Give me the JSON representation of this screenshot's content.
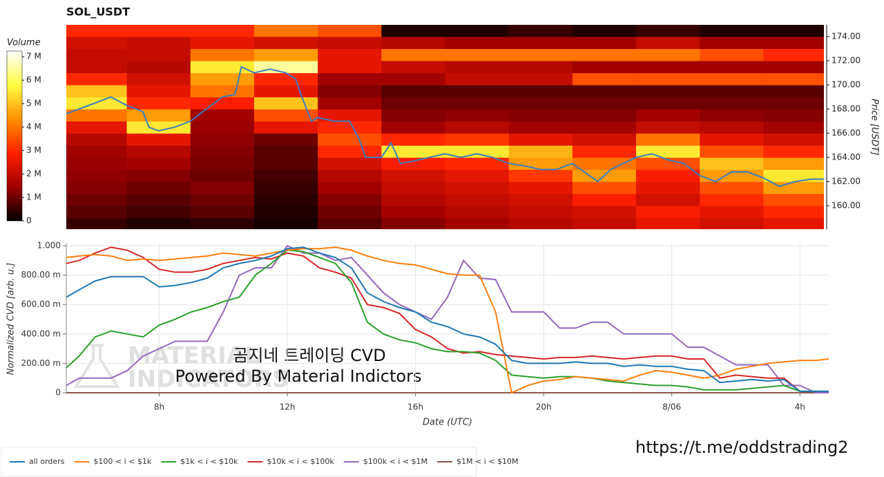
{
  "chart_data": [
    {
      "type": "heatmap",
      "title": "SOL_USDT",
      "x_edges": [
        5,
        7,
        9,
        11,
        13,
        15,
        17,
        19,
        21,
        23,
        25,
        27,
        29
      ],
      "y_edges": [
        158,
        159,
        160,
        161,
        162,
        163,
        164,
        165,
        166,
        167,
        168,
        169,
        170,
        171,
        172,
        173,
        174,
        175
      ],
      "values": [
        [
          0.5,
          0.3,
          0.4,
          0.2,
          0.8,
          1.2,
          1.5,
          1.8,
          2.0,
          2.5,
          2.2,
          2.5
        ],
        [
          0.8,
          0.6,
          0.8,
          0.3,
          1.0,
          1.5,
          1.8,
          2.0,
          2.2,
          2.8,
          2.5,
          3.0
        ],
        [
          1.0,
          0.8,
          1.0,
          0.4,
          1.2,
          1.8,
          2.0,
          2.2,
          2.8,
          2.2,
          3.0,
          3.5
        ],
        [
          1.2,
          1.0,
          1.2,
          0.5,
          1.5,
          2.0,
          2.2,
          2.5,
          3.5,
          2.5,
          3.5,
          4.5
        ],
        [
          1.3,
          1.2,
          1.0,
          0.6,
          1.8,
          2.2,
          2.5,
          3.2,
          4.5,
          2.8,
          4.5,
          5.5
        ],
        [
          1.4,
          1.5,
          1.1,
          0.8,
          2.2,
          2.8,
          3.0,
          4.5,
          4.0,
          3.5,
          5.0,
          4.5
        ],
        [
          1.5,
          1.8,
          1.2,
          0.8,
          3.0,
          5.5,
          5.5,
          4.8,
          3.0,
          5.5,
          3.5,
          3.0
        ],
        [
          1.8,
          2.5,
          1.3,
          1.0,
          3.5,
          3.0,
          3.2,
          2.5,
          2.2,
          4.0,
          2.5,
          2.2
        ],
        [
          2.5,
          5.5,
          1.4,
          2.5,
          3.0,
          1.5,
          1.8,
          1.5,
          1.5,
          2.0,
          1.8,
          1.5
        ],
        [
          4.0,
          4.5,
          1.5,
          3.5,
          2.5,
          1.2,
          1.3,
          1.2,
          1.2,
          1.5,
          1.3,
          1.2
        ],
        [
          5.5,
          3.0,
          2.8,
          5.0,
          1.5,
          1.0,
          1.0,
          1.0,
          1.0,
          1.0,
          1.0,
          1.0
        ],
        [
          5.0,
          2.5,
          4.0,
          2.5,
          1.2,
          0.8,
          0.8,
          0.8,
          0.8,
          0.8,
          0.8,
          0.8
        ],
        [
          3.0,
          2.2,
          4.5,
          3.0,
          1.5,
          1.5,
          2.0,
          2.0,
          3.5,
          3.5,
          3.5,
          3.5
        ],
        [
          2.0,
          1.8,
          5.5,
          6.5,
          2.5,
          2.0,
          1.8,
          1.8,
          1.5,
          1.5,
          1.5,
          1.5
        ],
        [
          2.0,
          2.0,
          4.0,
          4.5,
          2.5,
          4.0,
          4.0,
          4.0,
          4.0,
          4.0,
          3.5,
          3.0
        ],
        [
          2.2,
          2.0,
          2.5,
          2.2,
          2.0,
          1.8,
          1.5,
          1.5,
          1.5,
          2.0,
          1.5,
          1.5
        ],
        [
          3.0,
          3.0,
          3.0,
          4.0,
          3.5,
          0.3,
          0.3,
          0.5,
          0.3,
          0.5,
          0.3,
          0.3
        ]
      ],
      "colormap": [
        "#000000",
        "#a00000",
        "#ff2000",
        "#ff9000",
        "#ffff40",
        "#ffffff"
      ],
      "clim": [
        0,
        7.24
      ],
      "colorbar_label": "Volume",
      "cticks": [
        0,
        {
          "value": 1,
          "label": "1 M"
        },
        {
          "value": 2,
          "label": "2 M"
        },
        {
          "value": 3,
          "label": "3 M"
        },
        {
          "value": 4,
          "label": "4 M"
        },
        {
          "value": 5,
          "label": "5 M"
        },
        {
          "value": 6,
          "label": "6 M"
        },
        {
          "value": 7,
          "label": "7 M"
        }
      ],
      "price": {
        "color": "#3a7dbf",
        "x": [
          5.1,
          5.5,
          6,
          6.5,
          7,
          7.5,
          7.7,
          8,
          8.5,
          9,
          9.5,
          10,
          10.4,
          10.6,
          11,
          11.5,
          12,
          12.3,
          12.5,
          12.8,
          13,
          13.5,
          14,
          14.3,
          14.5,
          15,
          15.3,
          15.6,
          16,
          16.5,
          17,
          17.5,
          18,
          18.5,
          19,
          19.5,
          20,
          20.5,
          21,
          21.8,
          22.2,
          23,
          23.5,
          24,
          24.5,
          25,
          25.5,
          26,
          26.5,
          27,
          27.5,
          28,
          28.5,
          28.9
        ],
        "values": [
          167.6,
          168.0,
          168.5,
          169.0,
          168.3,
          167.8,
          166.5,
          166.2,
          166.5,
          167.0,
          168.0,
          169.0,
          169.2,
          171.5,
          171.0,
          171.3,
          171.0,
          170.5,
          169.0,
          167.0,
          167.3,
          167.0,
          167.0,
          165.5,
          164.0,
          164.0,
          165.2,
          163.5,
          163.7,
          164.0,
          164.3,
          164.0,
          164.3,
          164.0,
          163.5,
          163.3,
          163.0,
          163.0,
          163.5,
          162.0,
          163.0,
          164.0,
          164.3,
          163.8,
          163.5,
          162.5,
          162.0,
          162.8,
          162.8,
          162.3,
          161.6,
          162.0,
          162.2,
          162.2
        ]
      },
      "xlim": [
        5.1,
        28.9
      ],
      "ylim": [
        158.06,
        174.97
      ],
      "yticks": [
        {
          "value": 160,
          "label": "160.00"
        },
        {
          "value": 162,
          "label": "162.00"
        },
        {
          "value": 164,
          "label": "164.00"
        },
        {
          "value": 166,
          "label": "166.00"
        },
        {
          "value": 168,
          "label": "168.00"
        },
        {
          "value": 170,
          "label": "170.00"
        },
        {
          "value": 172,
          "label": "172.00"
        },
        {
          "value": 174,
          "label": "174.00"
        }
      ],
      "ylabel": "Price [USDT]"
    },
    {
      "type": "line",
      "x": [
        5.1,
        5.5,
        6,
        6.5,
        7,
        7.5,
        8,
        8.5,
        9,
        9.5,
        10,
        10.5,
        11,
        11.5,
        12,
        12.5,
        13,
        13.5,
        14,
        14.5,
        15,
        15.5,
        16,
        16.5,
        17,
        17.5,
        18,
        18.5,
        19,
        19.5,
        20,
        20.5,
        21,
        21.5,
        22,
        22.5,
        23,
        23.5,
        24,
        24.5,
        25,
        25.5,
        26,
        26.5,
        27,
        27.5,
        28,
        28.5,
        28.9
      ],
      "series": [
        {
          "name": "all orders",
          "color": "#1f77b4",
          "values": [
            0.65,
            0.7,
            0.76,
            0.79,
            0.79,
            0.79,
            0.72,
            0.73,
            0.75,
            0.78,
            0.85,
            0.88,
            0.9,
            0.93,
            0.98,
            0.99,
            0.95,
            0.92,
            0.85,
            0.68,
            0.62,
            0.58,
            0.55,
            0.48,
            0.45,
            0.4,
            0.38,
            0.33,
            0.22,
            0.2,
            0.2,
            0.2,
            0.21,
            0.2,
            0.2,
            0.18,
            0.19,
            0.18,
            0.18,
            0.16,
            0.15,
            0.07,
            0.08,
            0.09,
            0.08,
            0.09,
            0.01,
            0.01,
            0.01
          ]
        },
        {
          "name": "$100 < i < $1k",
          "color": "#ff7f0e",
          "values": [
            0.92,
            0.93,
            0.94,
            0.93,
            0.9,
            0.91,
            0.9,
            0.91,
            0.92,
            0.93,
            0.95,
            0.94,
            0.93,
            0.95,
            0.97,
            0.98,
            0.98,
            0.99,
            0.97,
            0.93,
            0.9,
            0.88,
            0.87,
            0.84,
            0.81,
            0.8,
            0.8,
            0.55,
            0,
            0.05,
            0.08,
            0.09,
            0.11,
            0.1,
            0.09,
            0.08,
            0.12,
            0.15,
            0.14,
            0.12,
            0.1,
            0.12,
            0.16,
            0.18,
            0.2,
            0.21,
            0.22,
            0.22,
            0.23
          ]
        },
        {
          "name": "$1k < i < $10k",
          "color": "#2ca02c",
          "values": [
            0.17,
            0.25,
            0.38,
            0.42,
            0.4,
            0.38,
            0.46,
            0.5,
            0.55,
            0.58,
            0.62,
            0.65,
            0.8,
            0.88,
            0.97,
            0.96,
            0.92,
            0.88,
            0.75,
            0.48,
            0.4,
            0.36,
            0.34,
            0.3,
            0.28,
            0.28,
            0.27,
            0.22,
            0.12,
            0.11,
            0.1,
            0.11,
            0.11,
            0.1,
            0.08,
            0.07,
            0.06,
            0.05,
            0.05,
            0.04,
            0.02,
            0.02,
            0.02,
            0.03,
            0.04,
            0.05,
            0.01,
            0.01,
            0.01
          ]
        },
        {
          "name": "$10k < i < $100k",
          "color": "#d62728",
          "values": [
            0.88,
            0.9,
            0.95,
            0.99,
            0.97,
            0.92,
            0.84,
            0.82,
            0.82,
            0.84,
            0.88,
            0.9,
            0.92,
            0.91,
            0.95,
            0.93,
            0.85,
            0.82,
            0.78,
            0.6,
            0.58,
            0.54,
            0.43,
            0.38,
            0.3,
            0.27,
            0.28,
            0.26,
            0.25,
            0.24,
            0.23,
            0.24,
            0.24,
            0.25,
            0.24,
            0.23,
            0.24,
            0.25,
            0.25,
            0.23,
            0.23,
            0.1,
            0.12,
            0.11,
            0.1,
            0.1,
            0.01,
            0.01,
            0.01
          ]
        },
        {
          "name": "$100k < i < $1M",
          "color": "#9467bd",
          "values": [
            0.05,
            0.1,
            0.1,
            0.1,
            0.15,
            0.25,
            0.3,
            0.35,
            0.35,
            0.35,
            0.55,
            0.8,
            0.85,
            0.85,
            1.0,
            0.95,
            0.95,
            0.9,
            0.92,
            0.8,
            0.68,
            0.6,
            0.55,
            0.5,
            0.65,
            0.9,
            0.78,
            0.77,
            0.55,
            0.55,
            0.55,
            0.44,
            0.44,
            0.48,
            0.48,
            0.4,
            0.4,
            0.4,
            0.4,
            0.31,
            0.31,
            0.25,
            0.19,
            0.19,
            0.19,
            0.05,
            0.05,
            0,
            0
          ]
        },
        {
          "name": "$1M < i < $10M",
          "color": "#8c564b",
          "values": [
            0,
            0,
            0,
            0,
            0,
            0,
            0,
            0,
            0,
            0,
            0,
            0,
            0,
            0,
            0,
            0,
            0,
            0,
            0,
            0,
            0,
            0,
            0,
            0,
            0,
            0,
            0,
            0,
            0,
            0,
            0,
            0,
            0,
            0,
            0,
            0,
            0,
            0,
            0,
            0,
            0,
            0,
            0,
            0,
            0,
            0,
            0,
            0,
            0
          ]
        }
      ],
      "xlim": [
        5.1,
        28.9
      ],
      "ylim": [
        0,
        1
      ],
      "xticks": [
        {
          "value": 8,
          "label": "8h"
        },
        {
          "value": 12,
          "label": "12h"
        },
        {
          "value": 16,
          "label": "16h"
        },
        {
          "value": 20,
          "label": "20h"
        },
        {
          "value": 24,
          "label": "8/06"
        },
        {
          "value": 28,
          "label": "4h"
        }
      ],
      "yticks": [
        0,
        {
          "value": 0.2,
          "label": "200.00 m"
        },
        {
          "value": 0.4,
          "label": "400.00 m"
        },
        {
          "value": 0.6,
          "label": "600.00 m"
        },
        {
          "value": 0.8,
          "label": "800.00 m"
        },
        {
          "value": 1,
          "label": "1.000"
        }
      ],
      "xlabel": "Date (UTC)",
      "ylabel": "Normalized CVD [arb. u.]",
      "grid": true,
      "legend": "bottom",
      "watermark": [
        "MATERIAL",
        "INDICATORS"
      ],
      "annotations": [
        "곰지네 트레이딩 CVD",
        "Powered By Material Indictors"
      ]
    }
  ],
  "link": "https://t.me/oddstrading2"
}
